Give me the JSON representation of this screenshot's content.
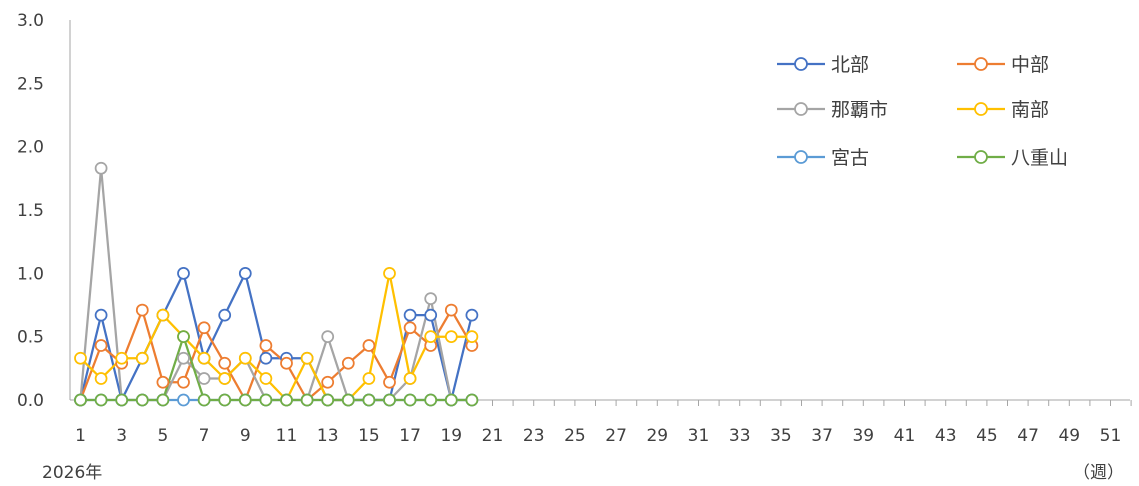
{
  "chart_data": {
    "type": "line",
    "x_caption_left": "2026年",
    "x_caption_right": "（週）",
    "ylim": [
      0,
      3.0
    ],
    "y_ticks": [
      "0.0",
      "0.5",
      "1.0",
      "1.5",
      "2.0",
      "2.5",
      "3.0"
    ],
    "xlim": [
      1,
      53
    ],
    "x_tick_labels": [
      "1",
      "3",
      "5",
      "7",
      "9",
      "11",
      "13",
      "15",
      "17",
      "19",
      "21",
      "23",
      "25",
      "27",
      "29",
      "31",
      "33",
      "35",
      "37",
      "39",
      "41",
      "43",
      "45",
      "47",
      "49",
      "51"
    ],
    "x": [
      1,
      2,
      3,
      4,
      5,
      6,
      7,
      8,
      9,
      10,
      11,
      12,
      13,
      14,
      15,
      16,
      17,
      18,
      19,
      20
    ],
    "grid": false,
    "legend_placement": "top-right",
    "series": [
      {
        "name": "北部",
        "color": "#4472C4",
        "values": [
          0,
          0.67,
          0,
          0.33,
          0.67,
          1.0,
          0.33,
          0.67,
          1.0,
          0.33,
          0.33,
          0.33,
          0,
          0,
          0,
          0,
          0.67,
          0.67,
          0,
          0.67
        ]
      },
      {
        "name": "中部",
        "color": "#ED7D31",
        "values": [
          0,
          0.43,
          0.29,
          0.71,
          0.14,
          0.14,
          0.57,
          0.29,
          0,
          0.43,
          0.29,
          0,
          0.14,
          0.29,
          0.43,
          0.14,
          0.57,
          0.43,
          0.71,
          0.43
        ]
      },
      {
        "name": "那覇市",
        "color": "#A5A5A5",
        "values": [
          0,
          1.83,
          0,
          0,
          0,
          0.33,
          0.17,
          0.17,
          0.33,
          0,
          0,
          0,
          0.5,
          0,
          0,
          0,
          0.17,
          0.8,
          0,
          0
        ]
      },
      {
        "name": "南部",
        "color": "#FFC000",
        "values": [
          0.33,
          0.17,
          0.33,
          0.33,
          0.67,
          0.5,
          0.33,
          0.17,
          0.33,
          0.17,
          0,
          0.33,
          0,
          0,
          0.17,
          1.0,
          0.17,
          0.5,
          0.5,
          0.5
        ]
      },
      {
        "name": "宮古",
        "color": "#5B9BD5",
        "values": [
          0,
          0,
          0,
          0,
          0,
          0,
          0,
          0,
          0,
          0,
          0,
          0,
          0,
          0,
          0,
          0,
          0,
          0,
          0,
          0
        ]
      },
      {
        "name": "八重山",
        "color": "#70AD47",
        "values": [
          0,
          0,
          0,
          0,
          0,
          0.5,
          0,
          0,
          0,
          0,
          0,
          0,
          0,
          0,
          0,
          0,
          0,
          0,
          0,
          0
        ]
      }
    ]
  }
}
